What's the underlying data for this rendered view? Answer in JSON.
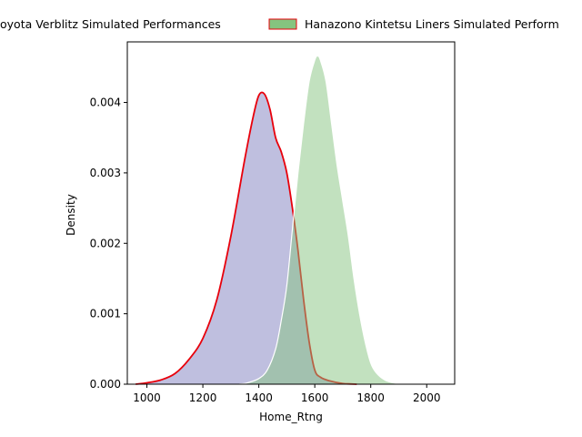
{
  "chart_data": {
    "type": "area",
    "xlabel": "Home_Rtng",
    "ylabel": "Density",
    "xlim": [
      930,
      2100
    ],
    "ylim": [
      0,
      0.00486
    ],
    "x_ticks": [
      1000,
      1200,
      1400,
      1600,
      1800,
      2000
    ],
    "x_tick_labels": [
      "1000",
      "1200",
      "1400",
      "1600",
      "1800",
      "2000"
    ],
    "y_ticks": [
      0,
      0.001,
      0.002,
      0.003,
      0.004
    ],
    "y_tick_labels": [
      "0.000",
      "0.001",
      "0.002",
      "0.003",
      "0.004"
    ],
    "legend_position": "top",
    "series": [
      {
        "name": "Toyota Verblitz Simulated Performances",
        "legend_label": "oyota Verblitz Simulated Performances",
        "fill_color": "#7f7fc0",
        "fill_opacity": 0.5,
        "line_color": "#e8000b",
        "x": [
          960,
          1000,
          1050,
          1100,
          1150,
          1200,
          1250,
          1300,
          1350,
          1380,
          1400,
          1420,
          1440,
          1460,
          1480,
          1500,
          1520,
          1540,
          1560,
          1580,
          1600,
          1620,
          1650,
          1700,
          1750
        ],
        "y": [
          0.0,
          2e-05,
          6e-05,
          0.00015,
          0.00035,
          0.00065,
          0.0012,
          0.0021,
          0.0032,
          0.0038,
          0.0041,
          0.00412,
          0.0039,
          0.0035,
          0.0033,
          0.003,
          0.0025,
          0.0019,
          0.0012,
          0.0006,
          0.0002,
          0.0001,
          5e-05,
          1e-05,
          0.0
        ]
      },
      {
        "name": "Hanazono Kintetsu Liners Simulated Performances",
        "legend_label": "Hanazono Kintetsu Liners Simulated Perform",
        "fill_color": "#85c47f",
        "fill_opacity": 0.5,
        "line_color": "#ffffff",
        "x": [
          1330,
          1360,
          1400,
          1430,
          1460,
          1480,
          1500,
          1520,
          1540,
          1560,
          1580,
          1600,
          1610,
          1620,
          1640,
          1660,
          1680,
          1700,
          1720,
          1740,
          1760,
          1780,
          1800,
          1820,
          1850,
          1880,
          1920,
          2000
        ],
        "y": [
          0.0,
          2e-05,
          8e-05,
          0.0002,
          0.0005,
          0.0009,
          0.0014,
          0.0022,
          0.003,
          0.0037,
          0.0043,
          0.0046,
          0.00466,
          0.0046,
          0.0043,
          0.0037,
          0.0031,
          0.0026,
          0.0021,
          0.0015,
          0.001,
          0.0006,
          0.0003,
          0.00016,
          6e-05,
          2e-05,
          0.0,
          0.0
        ]
      }
    ]
  }
}
